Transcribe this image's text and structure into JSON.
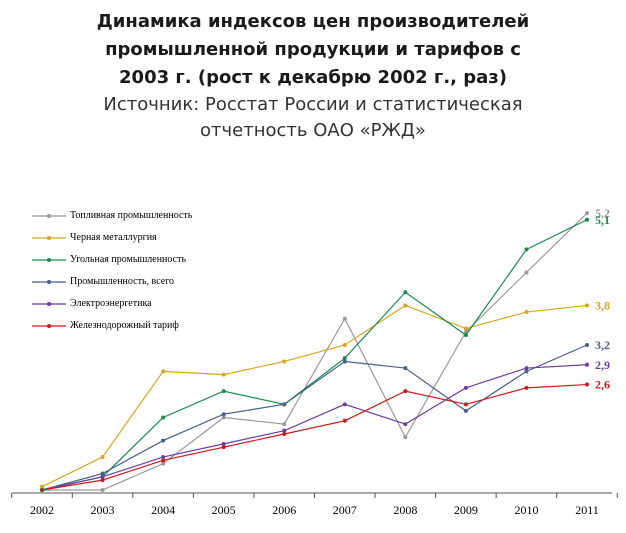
{
  "header": {
    "title_lines": [
      "Динамика индексов цен производителей",
      "промышленной продукции и тарифов с",
      "2003 г. (рост к декабрю 2002 г., раз)"
    ],
    "source_lines": [
      "Источник: Росстат России и статистическая",
      "отчетность ОАО «РЖД»"
    ]
  },
  "chart_data": {
    "type": "line",
    "title": "Динамика индексов цен производителей промышленной продукции и тарифов с 2003 г. (рост к декабрю 2002 г., раз)",
    "x": [
      "2002",
      "2003",
      "2004",
      "2005",
      "2006",
      "2007",
      "2008",
      "2009",
      "2010",
      "2011"
    ],
    "ylim": [
      1.0,
      5.4
    ],
    "grid": false,
    "legend_position": "top-left",
    "series": [
      {
        "name": "Топливная промышленность",
        "color": "#999999",
        "end_label": "5,2",
        "values": [
          1.0,
          1.0,
          1.4,
          2.1,
          2.0,
          3.6,
          1.8,
          3.4,
          4.3,
          5.2
        ]
      },
      {
        "name": "Черная металлургия",
        "color": "#d9a520",
        "end_label": "3,8",
        "values": [
          1.05,
          1.5,
          2.8,
          2.75,
          2.95,
          3.2,
          3.8,
          3.45,
          3.7,
          3.8
        ]
      },
      {
        "name": "Угольная промышленность",
        "color": "#1a8c4e",
        "end_label": "5,1",
        "values": [
          1.0,
          1.2,
          2.1,
          2.5,
          2.3,
          3.0,
          4.0,
          3.35,
          4.65,
          5.1
        ]
      },
      {
        "name": "Промышленность, всего",
        "color": "#4a5f8c",
        "end_label": "3,2",
        "values": [
          1.0,
          1.25,
          1.75,
          2.15,
          2.3,
          2.95,
          2.85,
          2.2,
          2.8,
          3.2
        ]
      },
      {
        "name": "Электроэнергетика",
        "color": "#6b3fa0",
        "end_label": "2,9",
        "values": [
          1.0,
          1.2,
          1.5,
          1.7,
          1.9,
          2.3,
          2.0,
          2.55,
          2.85,
          2.9
        ]
      },
      {
        "name": "Железнодорожный тариф",
        "color": "#cc1a1a",
        "end_label": "2,6",
        "values": [
          1.0,
          1.15,
          1.45,
          1.65,
          1.85,
          2.05,
          2.5,
          2.3,
          2.55,
          2.6
        ]
      }
    ]
  }
}
